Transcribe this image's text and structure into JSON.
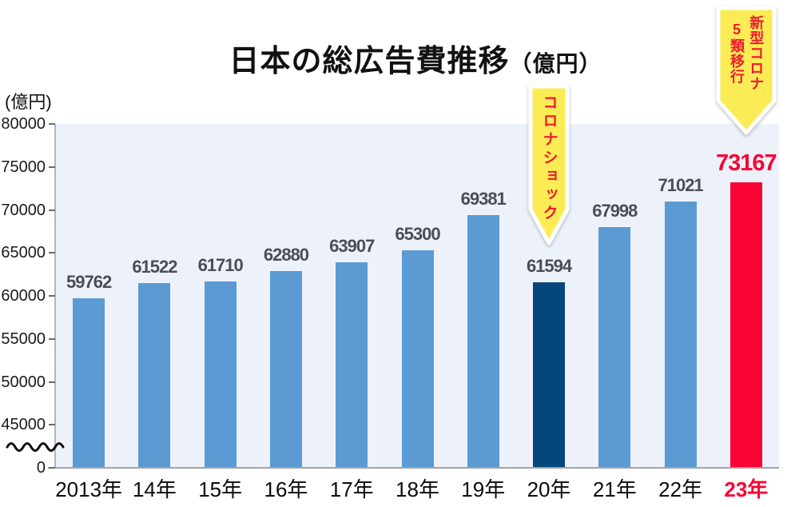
{
  "title": {
    "main": "日本の総広告費推移",
    "unit": "（億円）"
  },
  "y_axis_unit_label": "(億円)",
  "colors": {
    "plot_background": "#EDF2FA",
    "bar_blue": "#5B9AD3",
    "bar_navy": "#05477C",
    "bar_red": "#F90234",
    "value_label_gray": "#4A4E54",
    "value_label_red": "#F90234",
    "x_label_black": "#0B0B0B",
    "x_label_red": "#F90234",
    "callout_yellow": "#FBEC55",
    "callout_text_red": "#ED1B2F"
  },
  "chart_data": {
    "type": "bar",
    "title": "日本の総広告費推移（億円）",
    "ylabel": "(億円)",
    "xlabel": "",
    "categories": [
      "2013年",
      "14年",
      "15年",
      "16年",
      "17年",
      "18年",
      "19年",
      "20年",
      "21年",
      "22年",
      "23年"
    ],
    "values": [
      59762,
      61522,
      61710,
      62880,
      63907,
      65300,
      69381,
      61594,
      67998,
      71021,
      73167
    ],
    "bar_colors": [
      "#5B9AD3",
      "#5B9AD3",
      "#5B9AD3",
      "#5B9AD3",
      "#5B9AD3",
      "#5B9AD3",
      "#5B9AD3",
      "#05477C",
      "#5B9AD3",
      "#5B9AD3",
      "#F90234"
    ],
    "value_label_colors": [
      "#4A4E54",
      "#4A4E54",
      "#4A4E54",
      "#4A4E54",
      "#4A4E54",
      "#4A4E54",
      "#4A4E54",
      "#4A4E54",
      "#4A4E54",
      "#4A4E54",
      "#F90234"
    ],
    "value_label_sizes": [
      22,
      22,
      22,
      22,
      22,
      22,
      22,
      22,
      22,
      22,
      29
    ],
    "category_label_colors": [
      "#0B0B0B",
      "#0B0B0B",
      "#0B0B0B",
      "#0B0B0B",
      "#0B0B0B",
      "#0B0B0B",
      "#0B0B0B",
      "#0B0B0B",
      "#0B0B0B",
      "#0B0B0B",
      "#F90234"
    ],
    "y_ticks": [
      80000,
      75000,
      70000,
      65000,
      60000,
      55000,
      50000,
      45000,
      0
    ],
    "ylim": [
      0,
      80000
    ],
    "axis_break": true,
    "grid": false,
    "legend": null,
    "annotations": [
      {
        "text": "コロナショック",
        "target": "20年"
      },
      {
        "text": "新型コロナ5類移行",
        "target": "23年"
      }
    ]
  }
}
